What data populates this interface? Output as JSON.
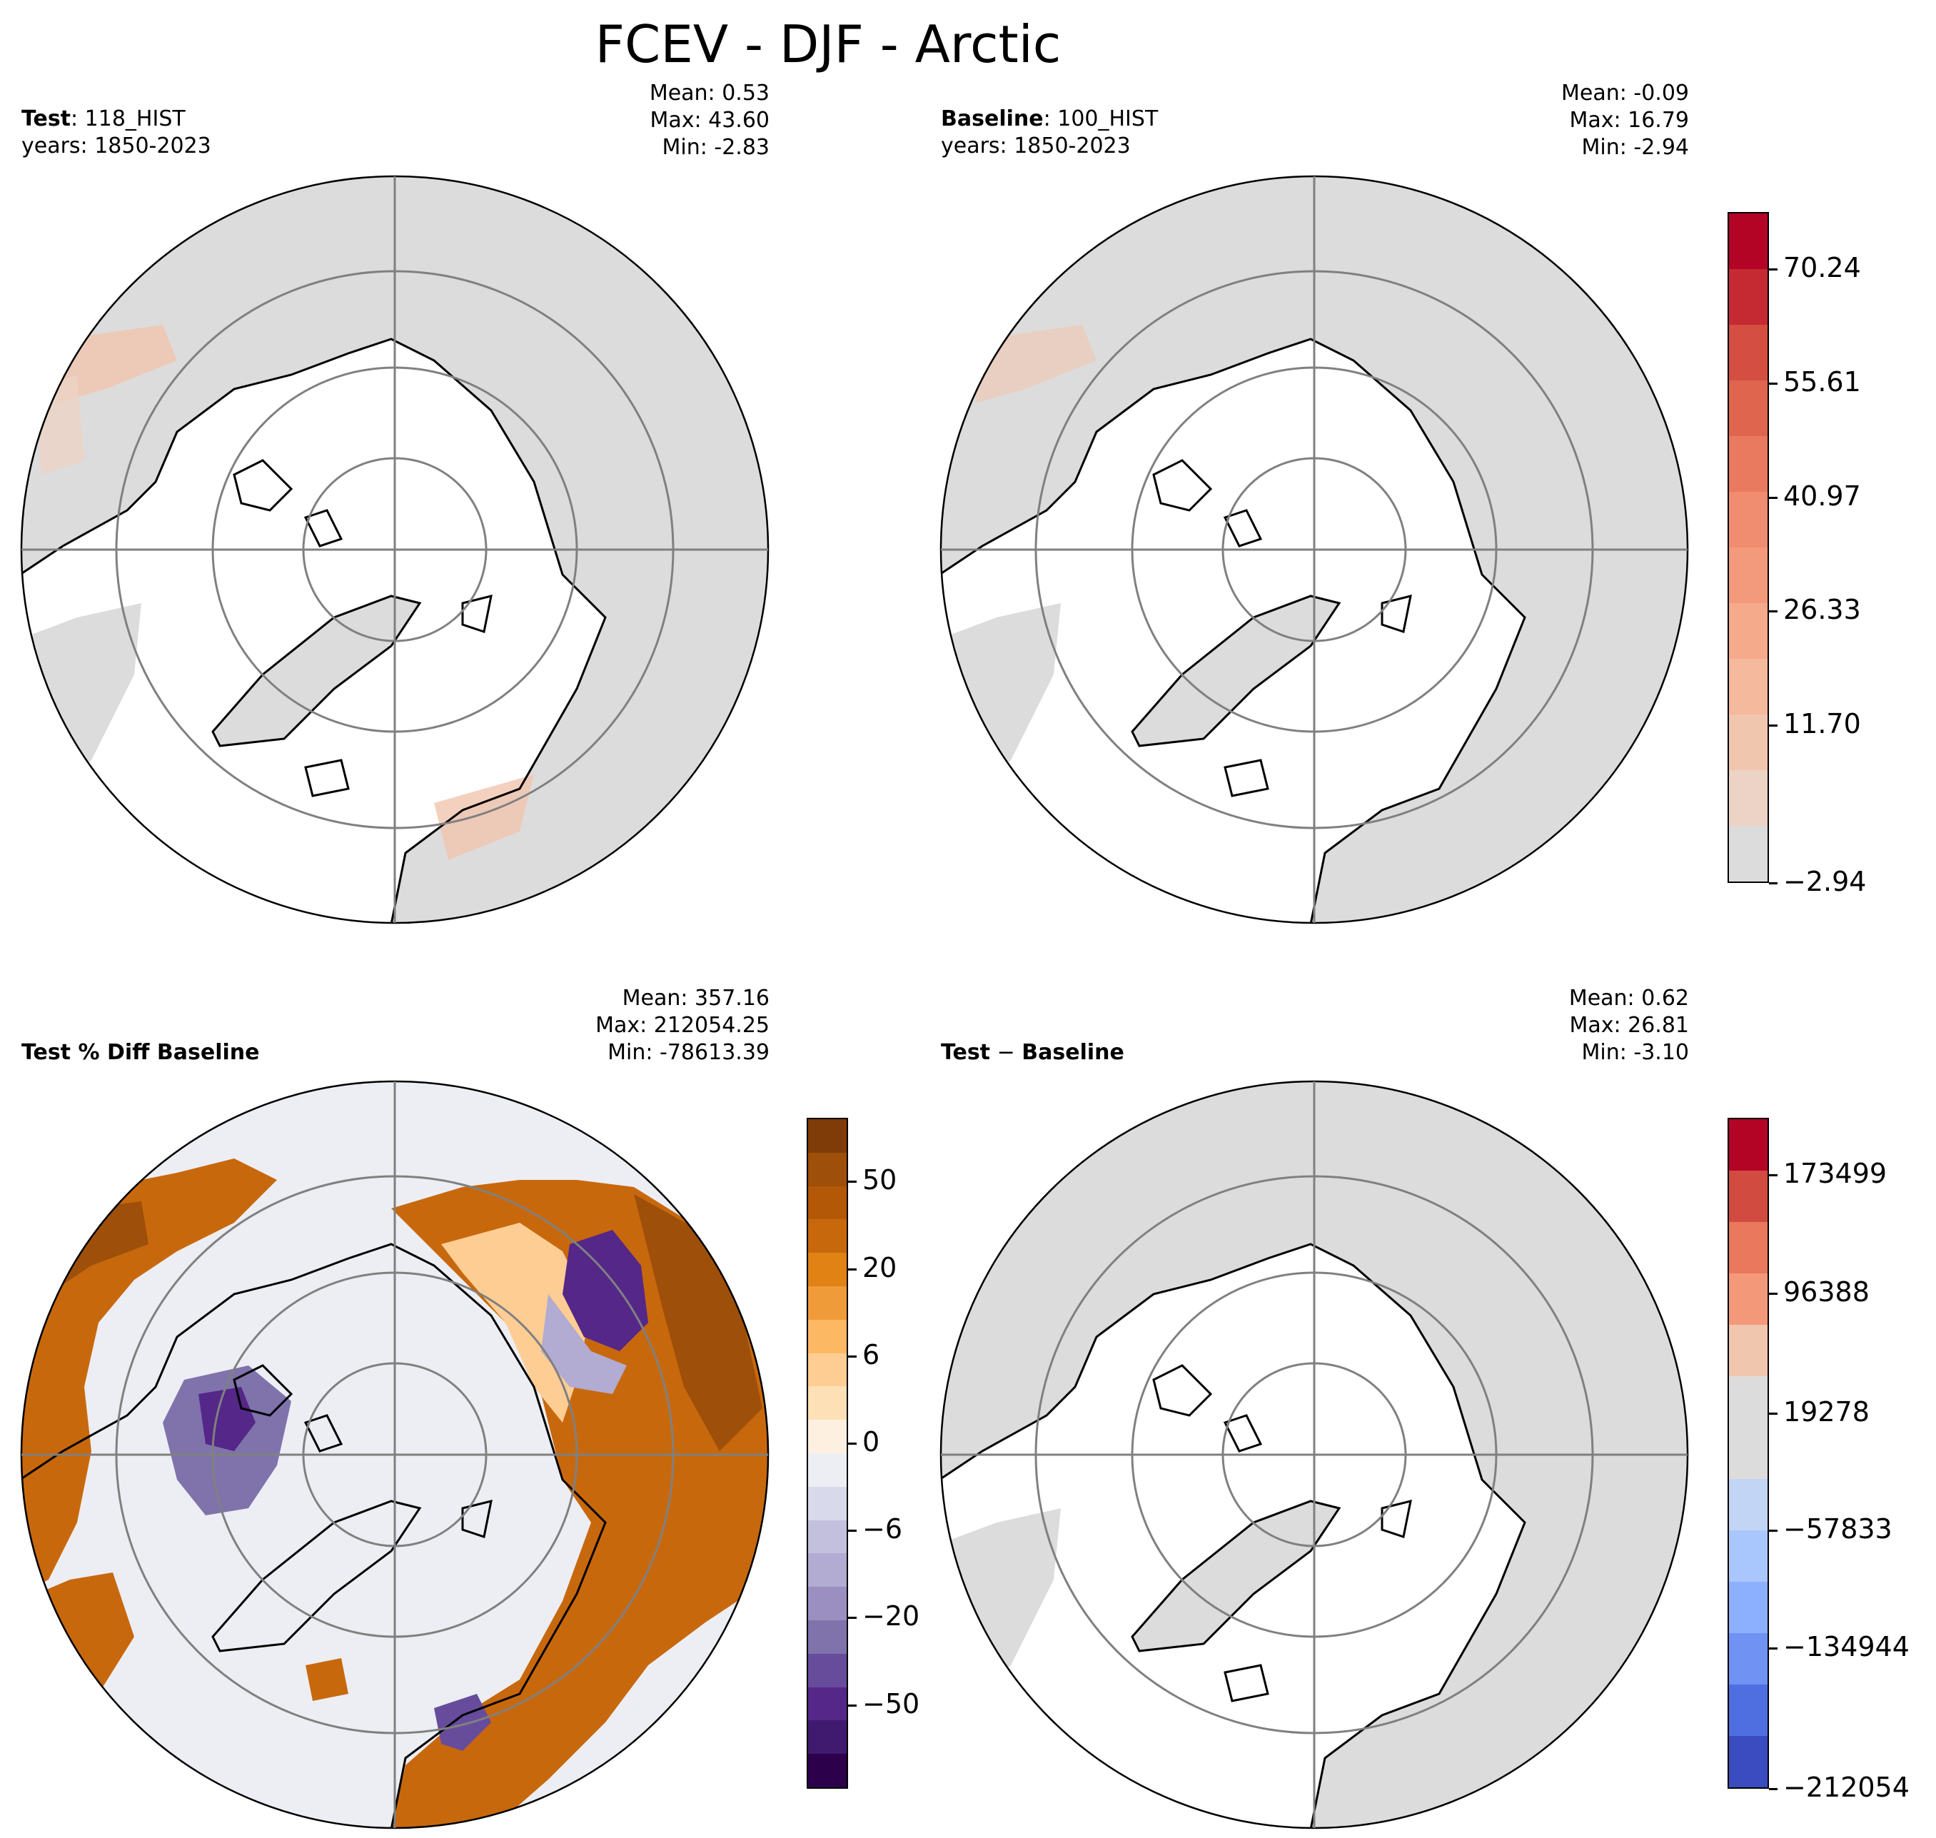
{
  "figure": {
    "title": "FCEV - DJF - Arctic"
  },
  "panels": {
    "test": {
      "label_bold": "Test",
      "label_rest": ": 118_HIST",
      "years": "years: 1850-2023",
      "mean": "Mean:  0.53",
      "max": "Max: 43.60",
      "min": "Min: -2.83"
    },
    "baseline": {
      "label_bold": "Baseline",
      "label_rest": ": 100_HIST",
      "years": "years: 1850-2023",
      "mean": "Mean: -0.09",
      "max": "Max: 16.79",
      "min": "Min: -2.94"
    },
    "pctdiff": {
      "label_bold": "Test % Diff Baseline",
      "mean": "Mean: 357.16",
      "max": "Max: 212054.25",
      "min": "Min: -78613.39"
    },
    "diff": {
      "label_bold": "Test",
      "label_op": " − ",
      "label_bold2": "Baseline",
      "mean": "Mean:  0.62",
      "max": "Max: 26.81",
      "min": "Min: -3.10"
    }
  },
  "colorbars": {
    "main": {
      "ticks": [
        "70.24",
        "55.61",
        "40.97",
        "26.33",
        "11.70",
        "−2.94"
      ],
      "colors": [
        "#b40426",
        "#c52a32",
        "#d44e41",
        "#e0654f",
        "#e97a5f",
        "#f08c6f",
        "#f39a7c",
        "#f5aa8b",
        "#f5b99d",
        "#f1c6af",
        "#ecd3c5",
        "#dddcdc"
      ]
    },
    "pct": {
      "ticks": [
        "50",
        "20",
        "6",
        "0",
        "−6",
        "−20",
        "−50"
      ],
      "colors": [
        "#7f3b08",
        "#9e4f09",
        "#b35806",
        "#c8680d",
        "#e08214",
        "#f09b39",
        "#fdb863",
        "#fdcd94",
        "#fee0b6",
        "#fdf0e0",
        "#edeef4",
        "#d8daeb",
        "#c2c0dd",
        "#b2abd2",
        "#9b8fc2",
        "#8073ac",
        "#674c9c",
        "#542788",
        "#401a6e",
        "#2d004b"
      ]
    },
    "diff": {
      "ticks": [
        "173499",
        "96388",
        "19278",
        "−57833",
        "−134944",
        "−212054"
      ],
      "colors": [
        "#b40426",
        "#d24b40",
        "#e9785d",
        "#f4987a",
        "#f1c6af",
        "#dddcdc",
        "#dddcdc",
        "#c3d5f4",
        "#aac7fd",
        "#8db0fe",
        "#6f92f3",
        "#4f6fe0",
        "#3b4cc0"
      ]
    }
  },
  "colors": {
    "land_gray": "#dddcdc",
    "pct_neg_light": "#edeef4",
    "pct_pos": "#c8680d",
    "pct_pos_dark": "#9e4f09",
    "pct_neg": "#674c9c",
    "main_light_red": "#f1c6af",
    "grid": "#808080"
  }
}
